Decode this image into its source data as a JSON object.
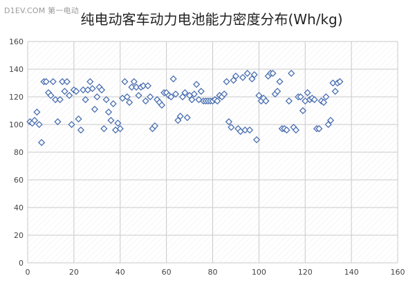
{
  "watermark": "D1EV.COM 第一电动",
  "chart_data": {
    "type": "scatter",
    "title": "纯电动客车动力电池能力密度分布(Wh/kg)",
    "xlabel": "",
    "ylabel": "",
    "xlim": [
      0,
      160
    ],
    "ylim": [
      0,
      160
    ],
    "xticks": [
      0,
      20,
      40,
      60,
      80,
      100,
      120,
      140,
      160
    ],
    "yticks": [
      0,
      20,
      40,
      60,
      80,
      100,
      120,
      140,
      160
    ],
    "grid": true,
    "legend": "none",
    "marker": "diamond-hollow",
    "series_color": "#4a6fb0",
    "grid_color": "#c8c8c8",
    "points": [
      [
        1,
        102
      ],
      [
        2,
        101
      ],
      [
        3,
        103
      ],
      [
        4,
        109
      ],
      [
        5,
        100
      ],
      [
        6,
        87
      ],
      [
        7,
        131
      ],
      [
        8,
        131
      ],
      [
        9,
        123
      ],
      [
        10,
        121
      ],
      [
        11,
        131
      ],
      [
        12,
        118
      ],
      [
        13,
        102
      ],
      [
        14,
        118
      ],
      [
        15,
        131
      ],
      [
        16,
        124
      ],
      [
        17,
        131
      ],
      [
        18,
        121
      ],
      [
        19,
        100
      ],
      [
        20,
        125
      ],
      [
        21,
        124
      ],
      [
        22,
        104
      ],
      [
        23,
        96
      ],
      [
        24,
        125
      ],
      [
        25,
        118
      ],
      [
        26,
        125
      ],
      [
        27,
        131
      ],
      [
        28,
        126
      ],
      [
        29,
        111
      ],
      [
        30,
        120
      ],
      [
        31,
        127
      ],
      [
        32,
        125
      ],
      [
        33,
        97
      ],
      [
        34,
        118
      ],
      [
        35,
        109
      ],
      [
        36,
        103
      ],
      [
        37,
        115
      ],
      [
        38,
        96
      ],
      [
        39,
        101
      ],
      [
        40,
        97
      ],
      [
        41,
        119
      ],
      [
        42,
        131
      ],
      [
        43,
        120
      ],
      [
        44,
        116
      ],
      [
        45,
        127
      ],
      [
        46,
        131
      ],
      [
        47,
        127
      ],
      [
        48,
        121
      ],
      [
        49,
        127
      ],
      [
        50,
        128
      ],
      [
        51,
        117
      ],
      [
        52,
        128
      ],
      [
        53,
        120
      ],
      [
        54,
        97
      ],
      [
        55,
        99
      ],
      [
        56,
        118
      ],
      [
        57,
        116
      ],
      [
        58,
        114
      ],
      [
        59,
        123
      ],
      [
        60,
        123
      ],
      [
        61,
        121
      ],
      [
        62,
        120
      ],
      [
        63,
        133
      ],
      [
        64,
        122
      ],
      [
        65,
        103
      ],
      [
        66,
        106
      ],
      [
        67,
        120
      ],
      [
        68,
        123
      ],
      [
        69,
        105
      ],
      [
        70,
        121
      ],
      [
        71,
        118
      ],
      [
        72,
        122
      ],
      [
        73,
        129
      ],
      [
        74,
        118
      ],
      [
        75,
        124
      ],
      [
        76,
        117
      ],
      [
        77,
        117
      ],
      [
        78,
        117
      ],
      [
        79,
        117
      ],
      [
        80,
        117
      ],
      [
        81,
        118
      ],
      [
        82,
        117
      ],
      [
        83,
        121
      ],
      [
        84,
        120
      ],
      [
        85,
        122
      ],
      [
        86,
        131
      ],
      [
        87,
        102
      ],
      [
        88,
        98
      ],
      [
        89,
        132
      ],
      [
        90,
        135
      ],
      [
        91,
        97
      ],
      [
        92,
        95
      ],
      [
        93,
        134
      ],
      [
        94,
        96
      ],
      [
        95,
        137
      ],
      [
        96,
        96
      ],
      [
        97,
        133
      ],
      [
        98,
        136
      ],
      [
        99,
        89
      ],
      [
        100,
        121
      ],
      [
        101,
        117
      ],
      [
        102,
        119
      ],
      [
        103,
        117
      ],
      [
        104,
        135
      ],
      [
        105,
        137
      ],
      [
        106,
        137
      ],
      [
        107,
        122
      ],
      [
        108,
        124
      ],
      [
        109,
        131
      ],
      [
        110,
        97
      ],
      [
        111,
        97
      ],
      [
        112,
        96
      ],
      [
        113,
        117
      ],
      [
        114,
        137
      ],
      [
        115,
        98
      ],
      [
        116,
        96
      ],
      [
        117,
        120
      ],
      [
        118,
        120
      ],
      [
        119,
        110
      ],
      [
        120,
        117
      ],
      [
        121,
        123
      ],
      [
        122,
        118
      ],
      [
        123,
        119
      ],
      [
        124,
        118
      ],
      [
        125,
        97
      ],
      [
        126,
        97
      ],
      [
        127,
        117
      ],
      [
        128,
        116
      ],
      [
        129,
        120
      ],
      [
        130,
        100
      ],
      [
        131,
        103
      ],
      [
        132,
        130
      ],
      [
        133,
        124
      ],
      [
        134,
        130
      ],
      [
        135,
        131
      ]
    ]
  }
}
